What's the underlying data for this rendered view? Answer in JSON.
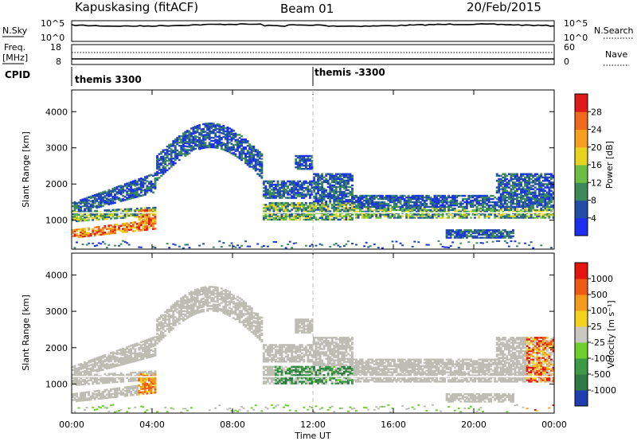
{
  "header": {
    "station": "Kapuskasing (fitACF)",
    "beam": "Beam 01",
    "date": "20/Feb/2015"
  },
  "panels": {
    "nsky": {
      "label": "N.Sky",
      "left_ticks": [
        "10^5",
        "10^0"
      ],
      "right_ticks": [
        "10^5",
        "10^0"
      ],
      "right_label": "N.Search"
    },
    "freq": {
      "label_line1": "Freq.",
      "label_line2": "[MHz]",
      "left_ticks": [
        "18",
        "8"
      ],
      "right_ticks": [
        "60",
        "0"
      ],
      "right_label": "Nave"
    },
    "cpid": {
      "label": "CPID",
      "segments": [
        "themis 3300",
        "themis -3300"
      ],
      "switch_hour": 12
    }
  },
  "chart_data": [
    {
      "type": "heatmap",
      "name": "power",
      "ylabel": "Slant Range [km]",
      "xlabel": "",
      "x_range_hours": [
        0,
        24
      ],
      "ylim": [
        200,
        4600
      ],
      "yticks": [
        "1000",
        "2000",
        "3000",
        "4000"
      ],
      "colorbar": {
        "label": "Power [dB]",
        "ticks": [
          "4",
          "8",
          "12",
          "16",
          "20",
          "24",
          "28"
        ],
        "colors": [
          "#1b2ff0",
          "#234ea8",
          "#3b8a59",
          "#6cbf42",
          "#e8d31f",
          "#f6a020",
          "#f06a1c",
          "#e01a1a"
        ]
      }
    },
    {
      "type": "heatmap",
      "name": "velocity",
      "ylabel": "Slant Range [km]",
      "xlabel": "Time UT",
      "x_range_hours": [
        0,
        24
      ],
      "ylim": [
        200,
        4600
      ],
      "yticks": [
        "1000",
        "2000",
        "3000",
        "4000"
      ],
      "xticks": [
        "00:00",
        "04:00",
        "08:00",
        "12:00",
        "16:00",
        "20:00",
        "00:00"
      ],
      "colorbar": {
        "label": "Velocity [m s⁻¹]",
        "ticks": [
          "1000",
          "500",
          "100",
          "25",
          "-25",
          "-100",
          "-500",
          "-1000"
        ],
        "colors": [
          "#1f3fb0",
          "#2f7a44",
          "#3d9a44",
          "#6ccf2c",
          "#c8c8c0",
          "#f2d21e",
          "#f29a1e",
          "#ee5a14",
          "#e4140e"
        ]
      }
    }
  ],
  "colors": {
    "ground_scatter": "#bdbdb4"
  }
}
